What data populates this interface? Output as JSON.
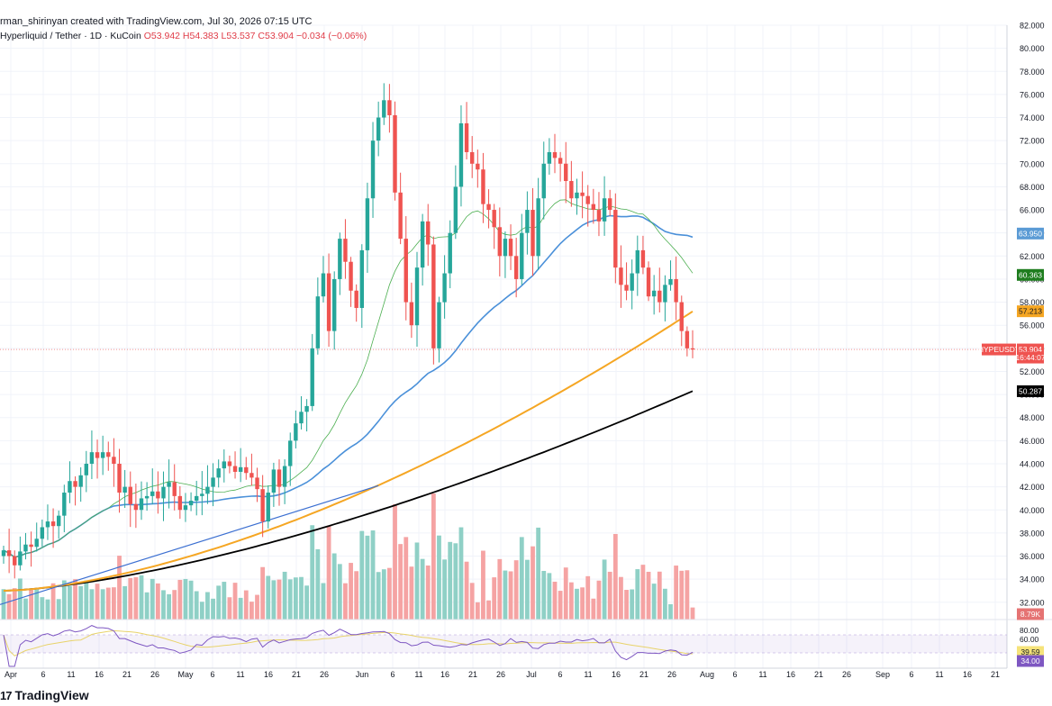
{
  "header": {
    "credit": "rman_shirinyan created with TradingView.com, Jul 30, 2026 07:15 UTC",
    "symbol": "Hyperliquid / Tether · 1D · KuCoin",
    "ohlc": "O53.942  H54.383  L53.537  C53.904  −0.034 (−0.06%)"
  },
  "brand": {
    "mark": "17",
    "text": "TradingView"
  },
  "colors": {
    "up": "#26a69a",
    "down": "#ef5350",
    "vol_up": "#8fd0c6",
    "vol_down": "#f5a3a3",
    "ma20": "#4caf50",
    "ma50": "#4a90d9",
    "ma100": "#f5a623",
    "ma200": "#000000",
    "trend": "#3b6fd1",
    "rsi": "#7e57c2",
    "rsi_ma": "#e8d36a"
  },
  "chart_data": {
    "type": "candlestick",
    "y_axis": {
      "ticks": [
        "82.000",
        "80.000",
        "78.000",
        "76.000",
        "74.000",
        "72.000",
        "70.000",
        "68.000",
        "66.000",
        "64.000",
        "62.000",
        "60.000",
        "58.000",
        "56.000",
        "54.000",
        "52.000",
        "50.000",
        "48.000",
        "46.000",
        "44.000",
        "42.000",
        "40.000",
        "38.000",
        "36.000",
        "34.000",
        "32.000"
      ],
      "range": [
        30.5,
        82
      ]
    },
    "x_axis": {
      "ticks": [
        "Apr",
        "6",
        "11",
        "16",
        "21",
        "26",
        "May",
        "6",
        "11",
        "16",
        "21",
        "26",
        "Jun",
        "6",
        "11",
        "16",
        "21",
        "26",
        "Jul",
        "6",
        "11",
        "16",
        "21",
        "26",
        "Aug",
        "6",
        "11",
        "16",
        "21",
        "26",
        "Sep",
        "6",
        "11",
        "16",
        "21"
      ]
    },
    "current_price": {
      "symbol": "HYPEUSDT",
      "value": 53.904,
      "label": "53.904",
      "countdown": "16:44:07"
    },
    "ma_labels": [
      {
        "name": "ma50",
        "value": 63.95,
        "label": "63.950"
      },
      {
        "name": "ma20",
        "value": 60.363,
        "label": "60.363"
      },
      {
        "name": "ma100",
        "value": 57.213,
        "label": "57.213"
      },
      {
        "name": "ma200",
        "value": 50.287,
        "label": "50.287"
      }
    ],
    "volume_label": "8.79K",
    "rsi": {
      "ticks": [
        "80.00",
        "60.00"
      ],
      "value_label": "39.59",
      "ma_label": "34.00",
      "range": [
        0,
        100
      ]
    },
    "closes": [
      36.5,
      36.0,
      35.2,
      36.4,
      37.0,
      36.8,
      37.5,
      38.5,
      39.0,
      38.6,
      39.5,
      41.5,
      42.5,
      42.0,
      43.0,
      44.0,
      45.0,
      44.5,
      45.0,
      44.6,
      44.0,
      41.5,
      42.0,
      40.5,
      40.0,
      41.0,
      41.2,
      41.6,
      41.0,
      42.0,
      42.4,
      41.2,
      40.0,
      40.4,
      40.8,
      41.2,
      41.4,
      42.0,
      42.8,
      43.6,
      44.2,
      43.8,
      43.3,
      43.7,
      43.2,
      42.8,
      41.8,
      39.0,
      41.5,
      43.5,
      42.0,
      43.8,
      46.0,
      47.5,
      48.5,
      49.0,
      54.0,
      58.5,
      60.5,
      55.5,
      60.0,
      63.5,
      61.5,
      59.0,
      57.5,
      62.5,
      67.0,
      72.0,
      74.0,
      75.5,
      74.2,
      67.5,
      63.5,
      58.0,
      56.0,
      61.0,
      65.0,
      63.0,
      54.0,
      58.0,
      60.5,
      64.0,
      68.0,
      73.5,
      71.0,
      70.0,
      69.5,
      66.5,
      66.0,
      64.5,
      62.0,
      63.5,
      62.0,
      60.0,
      64.0,
      66.0,
      62.0,
      67.0,
      70.0,
      71.0,
      70.5,
      70.0,
      68.5,
      67.0,
      67.5,
      67.2,
      66.5,
      66.0,
      65.0,
      67.0,
      66.0,
      61.0,
      59.5,
      59.0,
      60.5,
      62.5,
      61.0,
      58.5,
      59.0,
      58.0,
      59.5,
      60.0,
      58.0,
      55.5,
      54.0,
      53.9
    ]
  }
}
